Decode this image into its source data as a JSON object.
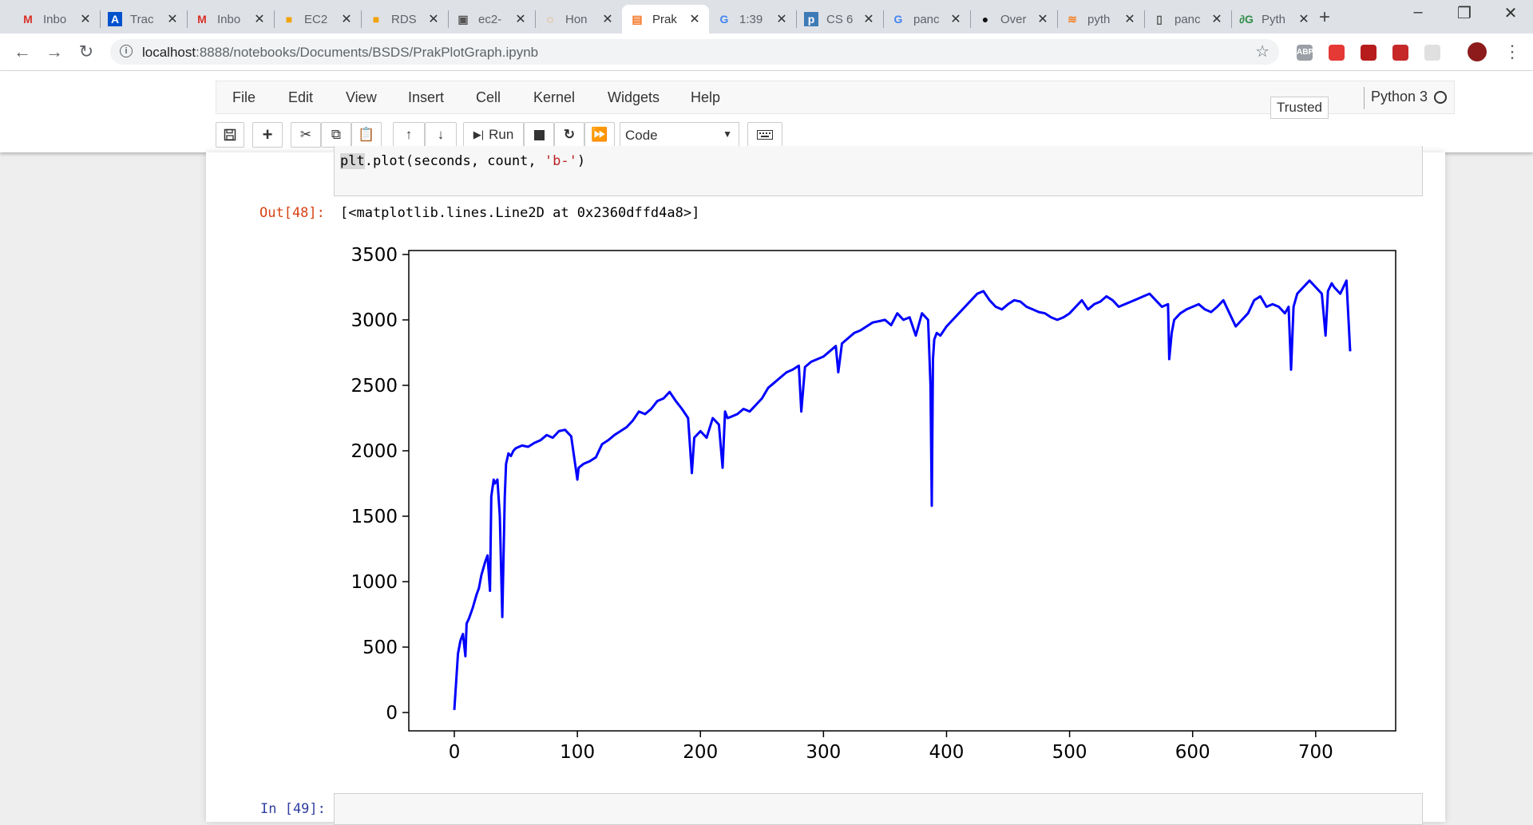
{
  "browser": {
    "tabs": [
      {
        "label": "Inbo",
        "icon": "gmail-icon"
      },
      {
        "label": "Trac",
        "icon": "atlassian-icon"
      },
      {
        "label": "Inbo",
        "icon": "gmail-icon"
      },
      {
        "label": "EC2",
        "icon": "aws-box-icon"
      },
      {
        "label": "RDS",
        "icon": "aws-box-icon"
      },
      {
        "label": "ec2-",
        "icon": "image-icon"
      },
      {
        "label": "Hon",
        "icon": "loading-icon"
      },
      {
        "label": "Prak",
        "icon": "jupyter-icon"
      },
      {
        "label": "1:39",
        "icon": "google-icon"
      },
      {
        "label": "CS 6",
        "icon": "piazza-icon"
      },
      {
        "label": "panc",
        "icon": "google-icon"
      },
      {
        "label": "Over",
        "icon": "github-icon"
      },
      {
        "label": "pyth",
        "icon": "stackoverflow-icon"
      },
      {
        "label": "panc",
        "icon": "document-icon"
      },
      {
        "label": "Pyth",
        "icon": "geeks-icon"
      }
    ],
    "address": {
      "host": "localhost",
      "path": ":8888/notebooks/Documents/BSDS/PrakPlotGraph.ipynb"
    },
    "extensions": [
      {
        "label": "ABP",
        "color": "#9aa0a6"
      },
      {
        "label": "",
        "color": "#e53935"
      },
      {
        "label": "",
        "color": "#b71c1c"
      },
      {
        "label": "",
        "color": "#c62828"
      },
      {
        "label": "",
        "color": "#e0e0e0"
      }
    ]
  },
  "jupyter": {
    "menu": [
      "File",
      "Edit",
      "View",
      "Insert",
      "Cell",
      "Kernel",
      "Widgets",
      "Help"
    ],
    "trusted": "Trusted",
    "kernel": "Python 3",
    "run_label": "Run",
    "cell_type": "Code"
  },
  "notebook": {
    "code_parts": {
      "hl": "plt",
      "middle": ".plot(seconds, count, ",
      "str": "'b-'",
      "end": ")"
    },
    "out_prompt": "Out[48]:",
    "out_text": "[<matplotlib.lines.Line2D at 0x2360dffd4a8>]",
    "in_prompt": "In [49]:"
  },
  "chart_data": {
    "type": "line",
    "title": "",
    "xlabel": "",
    "ylabel": "",
    "xlim": [
      -37,
      765
    ],
    "ylim": [
      -140,
      3530
    ],
    "xticks": [
      0,
      100,
      200,
      300,
      400,
      500,
      600,
      700
    ],
    "yticks": [
      0,
      500,
      1000,
      1500,
      2000,
      2500,
      3000,
      3500
    ],
    "color": "#0000ff",
    "grid": false,
    "series": [
      {
        "x": [
          0,
          3,
          5,
          7,
          9,
          10,
          12,
          15,
          18,
          20,
          22,
          25,
          27,
          29,
          30,
          32,
          33,
          35,
          37,
          39,
          41,
          42,
          44,
          46,
          48,
          50,
          55,
          60,
          65,
          70,
          75,
          80,
          85,
          90,
          95,
          100,
          101,
          105,
          110,
          115,
          120,
          125,
          130,
          135,
          140,
          145,
          150,
          155,
          160,
          165,
          170,
          175,
          180,
          185,
          190,
          193,
          195,
          200,
          205,
          210,
          215,
          218,
          220,
          222,
          225,
          230,
          235,
          240,
          245,
          250,
          255,
          260,
          265,
          270,
          275,
          280,
          282,
          285,
          290,
          295,
          300,
          305,
          310,
          312,
          315,
          320,
          325,
          330,
          335,
          340,
          345,
          350,
          355,
          360,
          365,
          370,
          375,
          380,
          385,
          387,
          388,
          389,
          390,
          392,
          395,
          400,
          405,
          410,
          415,
          420,
          425,
          430,
          435,
          440,
          445,
          450,
          455,
          460,
          465,
          470,
          475,
          480,
          485,
          490,
          495,
          500,
          505,
          510,
          515,
          520,
          525,
          530,
          535,
          540,
          545,
          550,
          555,
          560,
          565,
          570,
          575,
          580,
          581,
          583,
          585,
          590,
          595,
          600,
          605,
          610,
          615,
          620,
          625,
          630,
          635,
          640,
          645,
          650,
          655,
          660,
          665,
          670,
          675,
          678,
          680,
          682,
          685,
          690,
          695,
          700,
          705,
          708,
          710,
          713,
          715,
          720,
          725,
          728
        ],
        "y": [
          20,
          450,
          550,
          600,
          430,
          680,
          720,
          800,
          900,
          950,
          1050,
          1150,
          1200,
          930,
          1650,
          1780,
          1750,
          1780,
          1500,
          730,
          1650,
          1900,
          1980,
          1960,
          2000,
          2020,
          2040,
          2030,
          2060,
          2080,
          2120,
          2100,
          2150,
          2160,
          2110,
          1780,
          1870,
          1900,
          1920,
          1950,
          2050,
          2080,
          2120,
          2150,
          2180,
          2230,
          2300,
          2280,
          2320,
          2380,
          2400,
          2450,
          2380,
          2320,
          2250,
          1830,
          2100,
          2150,
          2100,
          2250,
          2200,
          1870,
          2300,
          2250,
          2260,
          2280,
          2320,
          2300,
          2350,
          2400,
          2480,
          2520,
          2560,
          2600,
          2620,
          2650,
          2300,
          2640,
          2680,
          2700,
          2720,
          2760,
          2800,
          2600,
          2820,
          2860,
          2900,
          2920,
          2950,
          2980,
          2990,
          3000,
          2960,
          3050,
          3000,
          3020,
          2880,
          3050,
          3000,
          2500,
          1580,
          2700,
          2850,
          2900,
          2880,
          2950,
          3000,
          3050,
          3100,
          3150,
          3200,
          3220,
          3150,
          3100,
          3080,
          3120,
          3150,
          3140,
          3100,
          3080,
          3060,
          3050,
          3020,
          3000,
          3020,
          3050,
          3100,
          3150,
          3080,
          3120,
          3140,
          3180,
          3150,
          3100,
          3120,
          3140,
          3160,
          3180,
          3200,
          3150,
          3100,
          3120,
          2700,
          2900,
          3000,
          3050,
          3080,
          3100,
          3120,
          3080,
          3060,
          3100,
          3150,
          3050,
          2950,
          3000,
          3050,
          3150,
          3180,
          3100,
          3120,
          3100,
          3050,
          3100,
          2620,
          3100,
          3200,
          3250,
          3300,
          3250,
          3200,
          2880,
          3220,
          3280,
          3250,
          3200,
          3300,
          2760
        ]
      }
    ]
  }
}
